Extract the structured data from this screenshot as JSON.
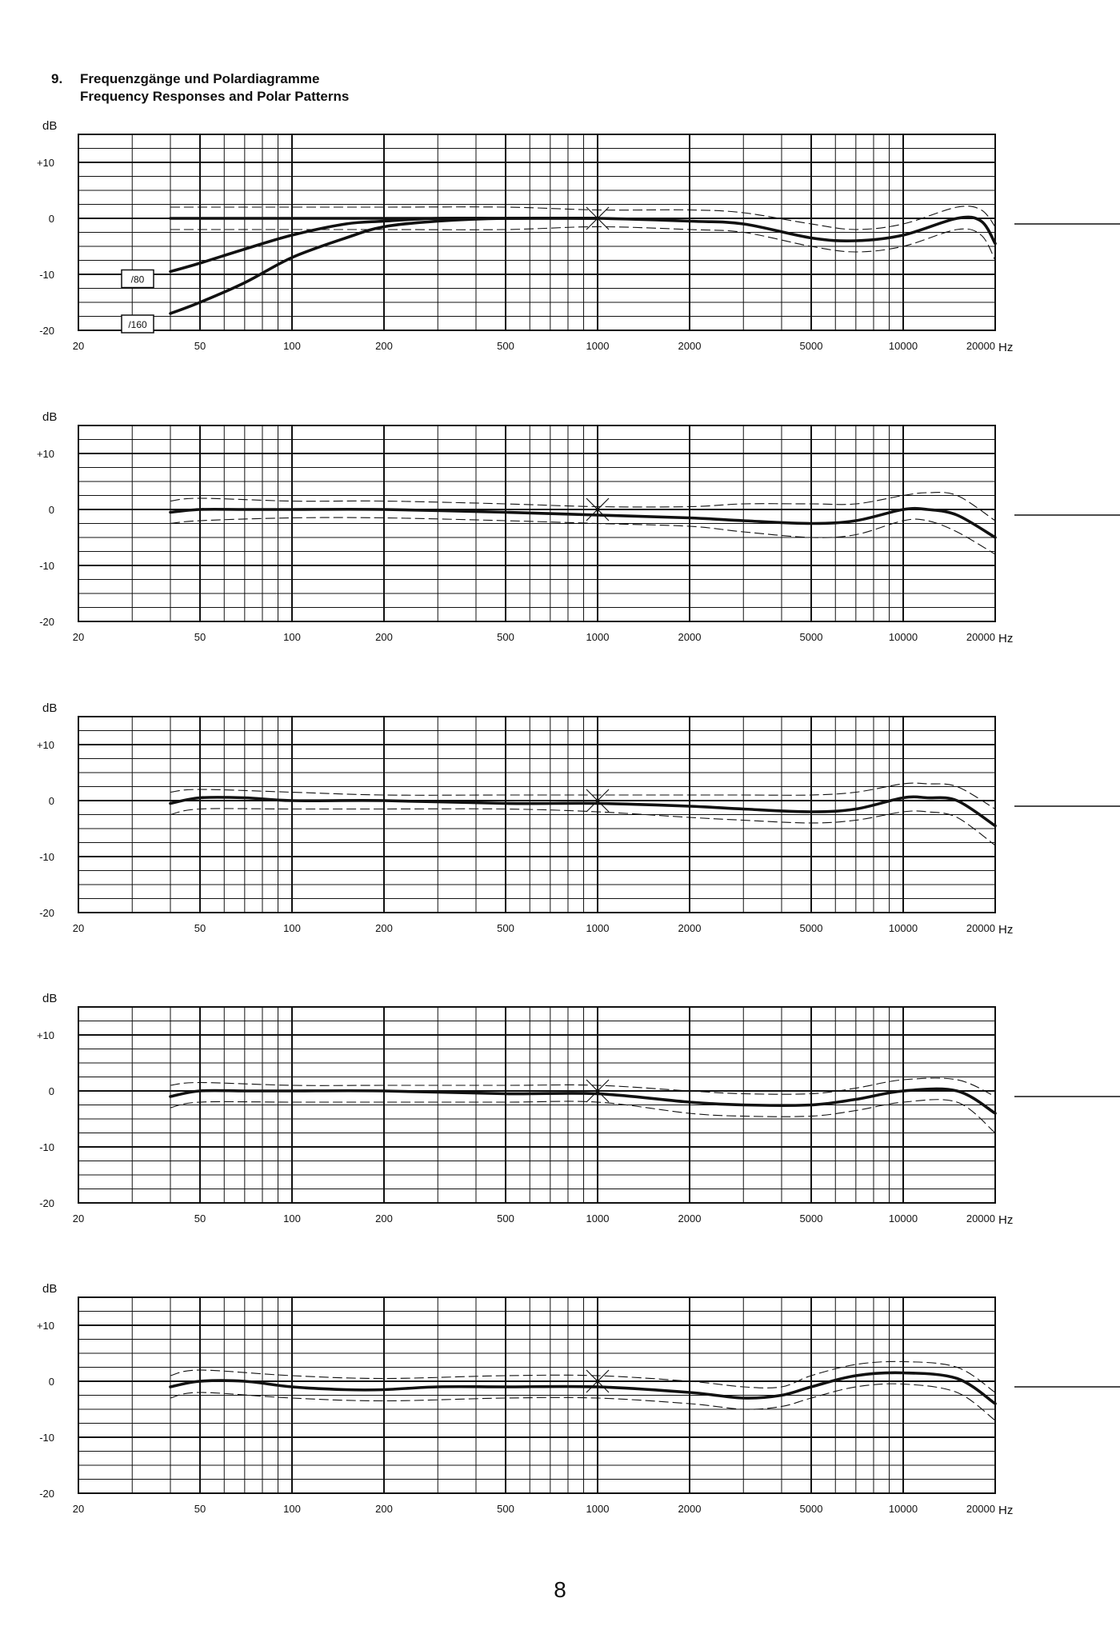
{
  "header": {
    "number": "9.",
    "title_de": "Frequenzgänge und Polardiagramme",
    "title_en": "Frequency Responses and Polar Patterns"
  },
  "page_number": "8",
  "chart_data": [
    {
      "type": "line",
      "ylabel": "dB",
      "xunit": "Hz",
      "xscale": "log",
      "xlim": [
        20,
        20000
      ],
      "ylim": [
        -20,
        15
      ],
      "ytick_labels": [
        {
          "v": 10,
          "t": "+10"
        },
        {
          "v": 0,
          "t": "0"
        },
        {
          "v": -10,
          "t": "-10"
        },
        {
          "v": -20,
          "t": "-20"
        }
      ],
      "xtick_labels": [
        {
          "v": 20,
          "t": "20"
        },
        {
          "v": 50,
          "t": "50"
        },
        {
          "v": 100,
          "t": "100"
        },
        {
          "v": 200,
          "t": "200"
        },
        {
          "v": 500,
          "t": "500"
        },
        {
          "v": 1000,
          "t": "1000"
        },
        {
          "v": 2000,
          "t": "2000"
        },
        {
          "v": 5000,
          "t": "5000"
        },
        {
          "v": 10000,
          "t": "10000"
        },
        {
          "v": 20000,
          "t": "20000"
        }
      ],
      "filter_labels": [
        "/80",
        "/160"
      ],
      "series": [
        {
          "x": [
            40,
            50,
            70,
            100,
            150,
            200,
            300,
            500,
            1000,
            2000,
            3000,
            5000,
            7000,
            10000,
            15000,
            18000,
            20000
          ],
          "y": [
            0,
            0,
            0,
            0,
            0,
            0,
            0,
            0,
            0,
            -0.5,
            -1,
            -3.5,
            -4,
            -3,
            0,
            -0.5,
            -4.5
          ]
        },
        {
          "x": [
            40,
            50,
            70,
            100,
            150,
            200,
            300,
            500,
            1000
          ],
          "y": [
            -9.5,
            -8,
            -5.5,
            -3,
            -1,
            -0.5,
            0,
            0,
            0
          ]
        },
        {
          "x": [
            40,
            50,
            70,
            100,
            150,
            200,
            300,
            500,
            1000
          ],
          "y": [
            -17,
            -15,
            -11.5,
            -7,
            -3.5,
            -1.5,
            -0.5,
            0,
            0
          ]
        }
      ],
      "tolerance": {
        "x": [
          40,
          50,
          100,
          200,
          500,
          1000,
          2000,
          3000,
          5000,
          7000,
          10000,
          15000,
          18000,
          20000
        ],
        "upper": [
          2,
          2,
          2,
          2,
          2,
          1.5,
          1.5,
          1,
          -1,
          -2,
          -1,
          2,
          1.5,
          -1.5
        ],
        "lower": [
          -2,
          -2,
          -2,
          -2,
          -2,
          -1.5,
          -2,
          -2.5,
          -5,
          -6,
          -5,
          -2,
          -3,
          -7.5
        ]
      }
    },
    {
      "type": "line",
      "ylabel": "dB",
      "xunit": "Hz",
      "xscale": "log",
      "xlim": [
        20,
        20000
      ],
      "ylim": [
        -20,
        15
      ],
      "ytick_labels": [
        {
          "v": 10,
          "t": "+10"
        },
        {
          "v": 0,
          "t": "0"
        },
        {
          "v": -10,
          "t": "-10"
        },
        {
          "v": -20,
          "t": "-20"
        }
      ],
      "xtick_labels": [
        {
          "v": 20,
          "t": "20"
        },
        {
          "v": 50,
          "t": "50"
        },
        {
          "v": 100,
          "t": "100"
        },
        {
          "v": 200,
          "t": "200"
        },
        {
          "v": 500,
          "t": "500"
        },
        {
          "v": 1000,
          "t": "1000"
        },
        {
          "v": 2000,
          "t": "2000"
        },
        {
          "v": 5000,
          "t": "5000"
        },
        {
          "v": 10000,
          "t": "10000"
        },
        {
          "v": 20000,
          "t": "20000"
        }
      ],
      "filter_labels": [],
      "series": [
        {
          "x": [
            40,
            50,
            70,
            100,
            200,
            500,
            1000,
            2000,
            3000,
            5000,
            7000,
            10000,
            12000,
            15000,
            20000
          ],
          "y": [
            -0.5,
            0,
            0,
            0,
            0,
            -0.5,
            -1,
            -1.5,
            -2,
            -2.5,
            -2,
            0,
            0,
            -1,
            -5
          ]
        }
      ],
      "tolerance": {
        "x": [
          40,
          50,
          100,
          200,
          500,
          1000,
          2000,
          3000,
          5000,
          7000,
          10000,
          12000,
          15000,
          20000
        ],
        "upper": [
          1.5,
          2,
          1.5,
          1.5,
          1,
          0.5,
          0.5,
          1,
          1,
          1,
          2.5,
          3,
          2.5,
          -2
        ],
        "lower": [
          -2.5,
          -2,
          -1.5,
          -1.5,
          -2,
          -2.5,
          -3,
          -4,
          -5,
          -4.5,
          -2,
          -2,
          -4,
          -8
        ]
      }
    },
    {
      "type": "line",
      "ylabel": "dB",
      "xunit": "Hz",
      "xscale": "log",
      "xlim": [
        20,
        20000
      ],
      "ylim": [
        -20,
        15
      ],
      "ytick_labels": [
        {
          "v": 10,
          "t": "+10"
        },
        {
          "v": 0,
          "t": "0"
        },
        {
          "v": -10,
          "t": "-10"
        },
        {
          "v": -20,
          "t": "-20"
        }
      ],
      "xtick_labels": [
        {
          "v": 20,
          "t": "20"
        },
        {
          "v": 50,
          "t": "50"
        },
        {
          "v": 100,
          "t": "100"
        },
        {
          "v": 200,
          "t": "200"
        },
        {
          "v": 500,
          "t": "500"
        },
        {
          "v": 1000,
          "t": "1000"
        },
        {
          "v": 2000,
          "t": "2000"
        },
        {
          "v": 5000,
          "t": "5000"
        },
        {
          "v": 10000,
          "t": "10000"
        },
        {
          "v": 20000,
          "t": "20000"
        }
      ],
      "filter_labels": [],
      "series": [
        {
          "x": [
            40,
            50,
            70,
            100,
            200,
            500,
            1000,
            2000,
            3000,
            5000,
            7000,
            10000,
            12000,
            15000,
            20000
          ],
          "y": [
            -0.5,
            0.5,
            0.5,
            0,
            0,
            -0.5,
            -0.5,
            -1,
            -1.5,
            -2,
            -1.5,
            0.5,
            0.5,
            0,
            -4.5
          ]
        }
      ],
      "tolerance": {
        "x": [
          40,
          50,
          100,
          200,
          500,
          1000,
          2000,
          3000,
          5000,
          7000,
          10000,
          12000,
          15000,
          20000
        ],
        "upper": [
          1.5,
          2,
          1.5,
          1,
          1,
          1,
          1,
          1,
          1,
          1.5,
          3,
          3,
          2.5,
          -1.5
        ],
        "lower": [
          -2.5,
          -1.5,
          -1.5,
          -1.5,
          -1.5,
          -2,
          -3,
          -3.5,
          -4,
          -3.5,
          -2,
          -2,
          -3,
          -8
        ]
      }
    },
    {
      "type": "line",
      "ylabel": "dB",
      "xunit": "Hz",
      "xscale": "log",
      "xlim": [
        20,
        20000
      ],
      "ylim": [
        -20,
        15
      ],
      "ytick_labels": [
        {
          "v": 10,
          "t": "+10"
        },
        {
          "v": 0,
          "t": "0"
        },
        {
          "v": -10,
          "t": "-10"
        },
        {
          "v": -20,
          "t": "-20"
        }
      ],
      "xtick_labels": [
        {
          "v": 20,
          "t": "20"
        },
        {
          "v": 50,
          "t": "50"
        },
        {
          "v": 100,
          "t": "100"
        },
        {
          "v": 200,
          "t": "200"
        },
        {
          "v": 500,
          "t": "500"
        },
        {
          "v": 1000,
          "t": "1000"
        },
        {
          "v": 2000,
          "t": "2000"
        },
        {
          "v": 5000,
          "t": "5000"
        },
        {
          "v": 10000,
          "t": "10000"
        },
        {
          "v": 20000,
          "t": "20000"
        }
      ],
      "filter_labels": [],
      "series": [
        {
          "x": [
            40,
            50,
            70,
            100,
            200,
            500,
            1000,
            2000,
            3000,
            5000,
            7000,
            10000,
            15000,
            20000
          ],
          "y": [
            -1,
            0,
            0,
            0,
            0,
            -0.5,
            -0.5,
            -2,
            -2.5,
            -2.5,
            -1.5,
            0,
            0,
            -4
          ]
        }
      ],
      "tolerance": {
        "x": [
          40,
          50,
          100,
          200,
          500,
          1000,
          2000,
          3000,
          5000,
          7000,
          10000,
          15000,
          20000
        ],
        "upper": [
          1,
          1.5,
          1,
          1,
          1,
          1,
          0,
          -0.5,
          -0.5,
          0.5,
          2,
          2,
          -1
        ],
        "lower": [
          -3,
          -2,
          -2,
          -2,
          -2,
          -2,
          -4,
          -4.5,
          -4.5,
          -3.5,
          -2,
          -2,
          -7.5
        ]
      }
    },
    {
      "type": "line",
      "ylabel": "dB",
      "xunit": "Hz",
      "xscale": "log",
      "xlim": [
        20,
        20000
      ],
      "ylim": [
        -20,
        15
      ],
      "ytick_labels": [
        {
          "v": 10,
          "t": "+10"
        },
        {
          "v": 0,
          "t": "0"
        },
        {
          "v": -10,
          "t": "-10"
        },
        {
          "v": -20,
          "t": "-20"
        }
      ],
      "xtick_labels": [
        {
          "v": 20,
          "t": "20"
        },
        {
          "v": 50,
          "t": "50"
        },
        {
          "v": 100,
          "t": "100"
        },
        {
          "v": 200,
          "t": "200"
        },
        {
          "v": 500,
          "t": "500"
        },
        {
          "v": 1000,
          "t": "1000"
        },
        {
          "v": 2000,
          "t": "2000"
        },
        {
          "v": 5000,
          "t": "5000"
        },
        {
          "v": 10000,
          "t": "10000"
        },
        {
          "v": 20000,
          "t": "20000"
        }
      ],
      "filter_labels": [],
      "series": [
        {
          "x": [
            40,
            50,
            70,
            100,
            150,
            200,
            300,
            500,
            1000,
            2000,
            3000,
            4000,
            5000,
            7000,
            10000,
            15000,
            20000
          ],
          "y": [
            -1,
            0,
            0,
            -1,
            -1.5,
            -1.5,
            -1,
            -1,
            -1,
            -2,
            -3,
            -2.5,
            -1,
            1,
            1.5,
            0.5,
            -4
          ]
        }
      ],
      "tolerance": {
        "x": [
          40,
          50,
          100,
          200,
          500,
          1000,
          2000,
          3000,
          4000,
          5000,
          7000,
          10000,
          15000,
          20000
        ],
        "upper": [
          1,
          2,
          1,
          0.5,
          1,
          1,
          0,
          -1,
          -1,
          1,
          3,
          3.5,
          2.5,
          -2
        ],
        "lower": [
          -3,
          -2,
          -3,
          -3.5,
          -3,
          -3,
          -4,
          -5,
          -4.5,
          -3,
          -1,
          -0.5,
          -2,
          -7
        ]
      }
    }
  ]
}
